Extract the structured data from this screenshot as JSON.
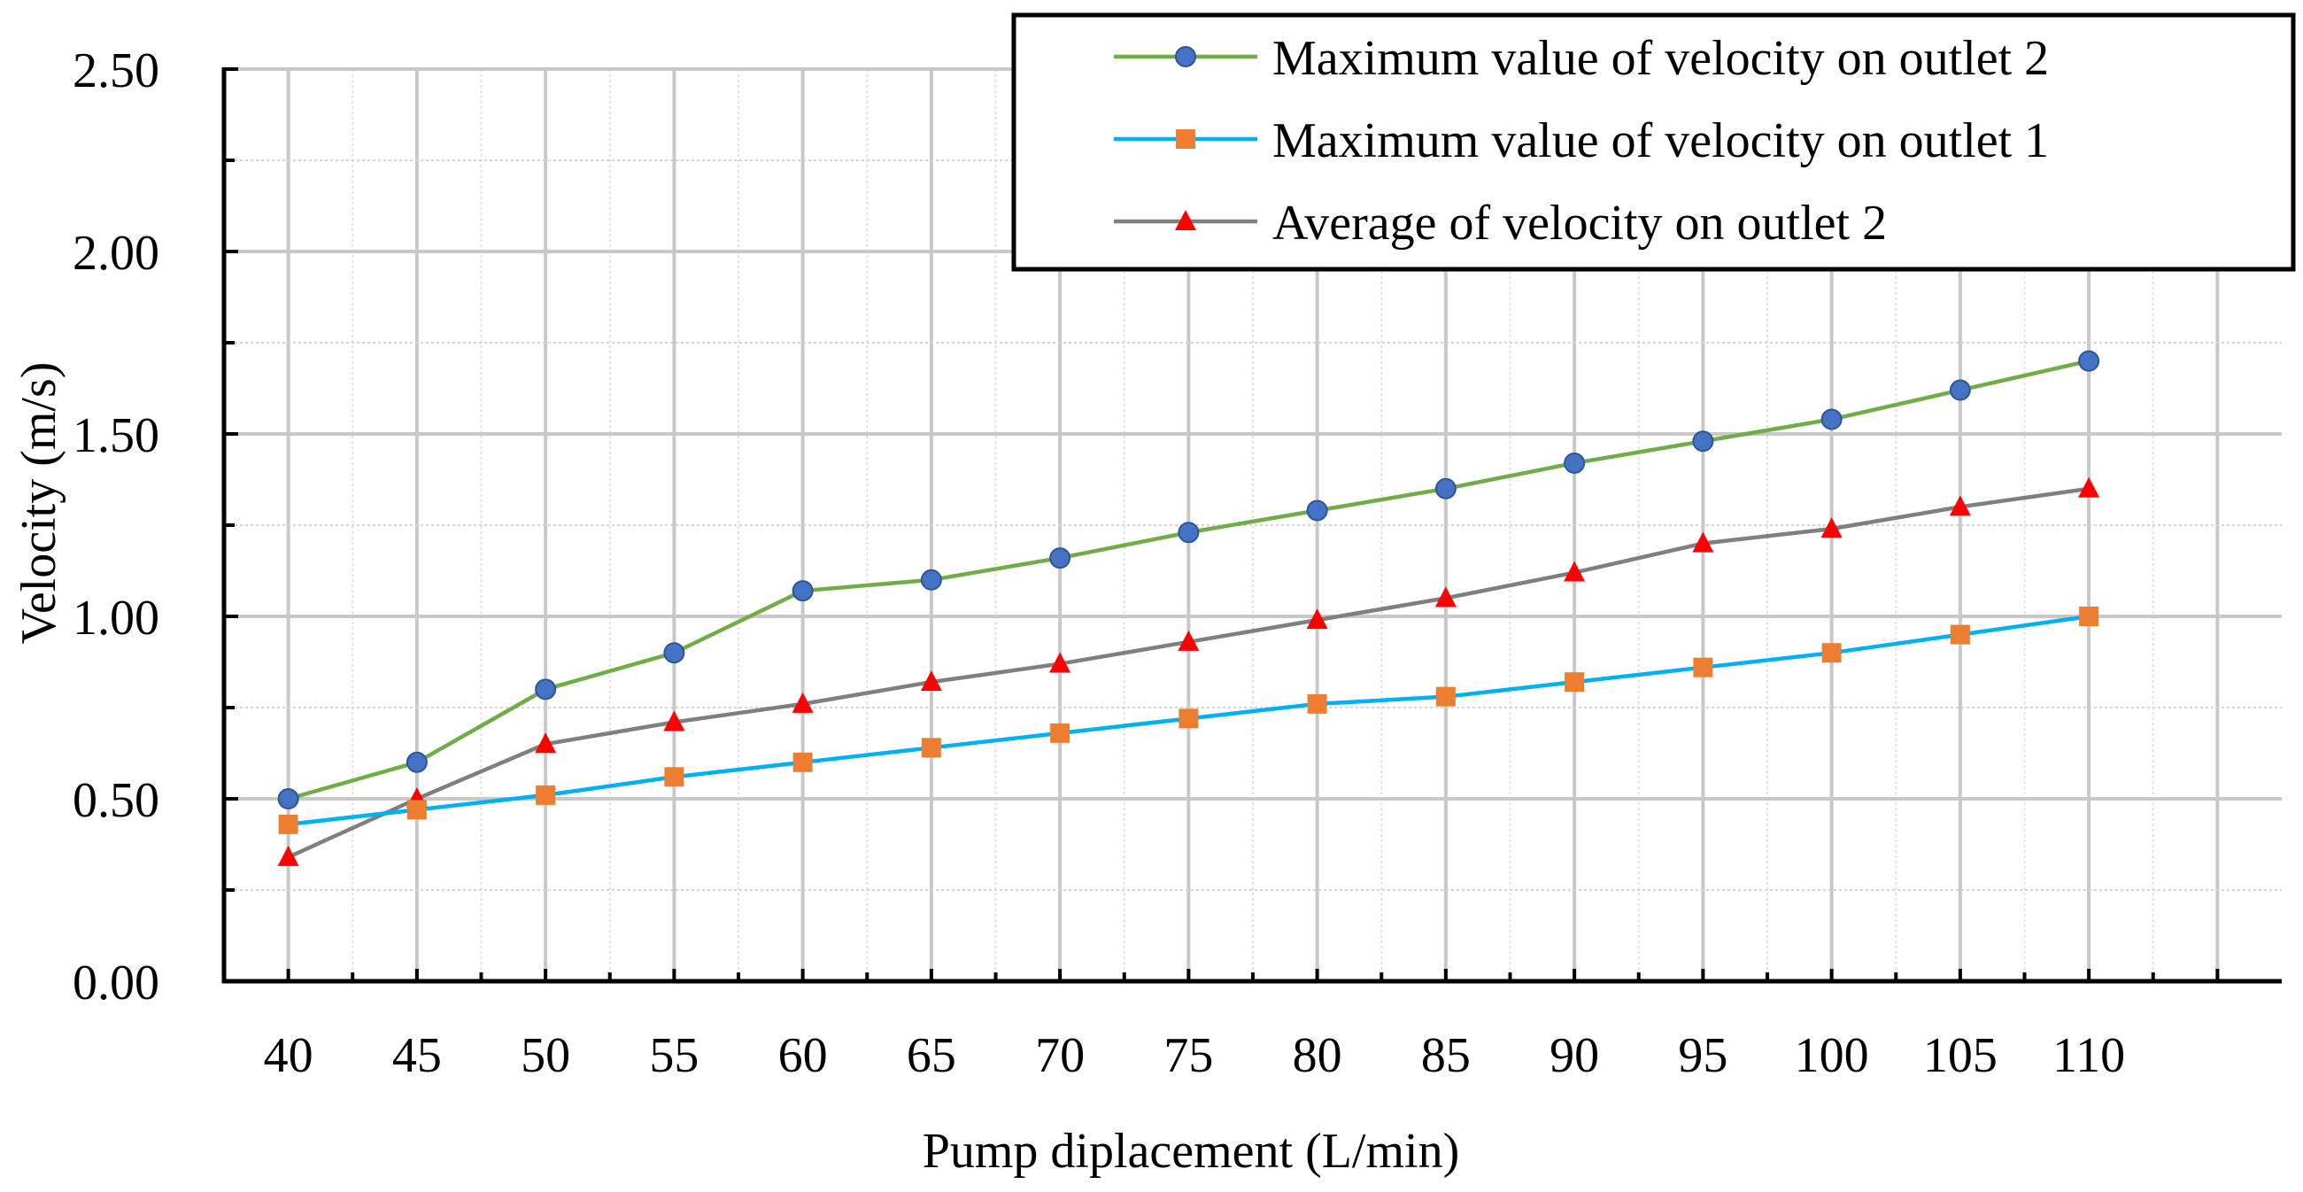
{
  "chart_data": {
    "type": "line",
    "title": "",
    "xlabel": "Pump diplacement (L/min)",
    "ylabel": "Velocity (m/s)",
    "x": [
      40,
      45,
      50,
      55,
      60,
      65,
      70,
      75,
      80,
      85,
      90,
      95,
      100,
      105,
      110
    ],
    "x_tick_labels": [
      "40",
      "45",
      "50",
      "55",
      "60",
      "65",
      "70",
      "75",
      "80",
      "85",
      "90",
      "95",
      "100",
      "105",
      "110"
    ],
    "y_tick_labels": [
      "0.00",
      "0.50",
      "1.00",
      "1.50",
      "2.00",
      "2.50"
    ],
    "y_ticks": [
      0,
      0.5,
      1.0,
      1.5,
      2.0,
      2.5
    ],
    "xlim": [
      37.5,
      117.5
    ],
    "ylim": [
      0,
      2.5
    ],
    "grid": true,
    "legend_position": "top-right",
    "series": [
      {
        "name": "Maximum value of velocity on outlet 2",
        "line_color": "#70ad47",
        "marker": "circle",
        "marker_color": "#4472c4",
        "values": [
          0.5,
          0.6,
          0.8,
          0.9,
          1.07,
          1.1,
          1.16,
          1.23,
          1.29,
          1.35,
          1.42,
          1.48,
          1.54,
          1.62,
          1.7
        ]
      },
      {
        "name": "Maximum value of velocity on outlet 1",
        "line_color": "#00b0f0",
        "marker": "square",
        "marker_color": "#ed7d31",
        "values": [
          0.43,
          0.47,
          0.51,
          0.56,
          0.6,
          0.64,
          0.68,
          0.72,
          0.76,
          0.78,
          0.82,
          0.86,
          0.9,
          0.95,
          1.0
        ]
      },
      {
        "name": "Average of velocity on outlet 2",
        "line_color": "#7f7f7f",
        "marker": "triangle",
        "marker_color": "#ff0000",
        "values": [
          0.34,
          0.5,
          0.65,
          0.71,
          0.76,
          0.82,
          0.87,
          0.93,
          0.99,
          1.05,
          1.12,
          1.2,
          1.24,
          1.3,
          1.35
        ]
      }
    ]
  }
}
